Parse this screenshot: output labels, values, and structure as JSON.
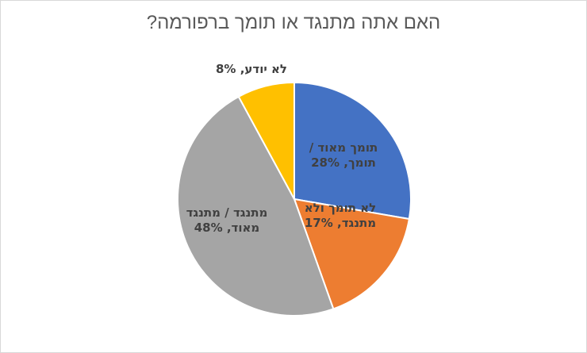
{
  "chart_data": {
    "type": "pie",
    "title": "האם אתה מתנגד או תומך ברפורמה?",
    "slices": [
      {
        "category_lines": [
          "תומך מאוד /",
          "תומך,"
        ],
        "value": 28,
        "value_text": "28%",
        "color": "#4472c4"
      },
      {
        "category_lines": [
          "לא תומך ולא",
          "מתנגד,"
        ],
        "value": 17,
        "value_text": "17%",
        "color": "#ed7d31"
      },
      {
        "category_lines": [
          "מתנגד / מתנגד",
          "מאוד,"
        ],
        "value": 48,
        "value_text": "48%",
        "color": "#a5a5a5"
      },
      {
        "category_lines": [
          "לא יודע,"
        ],
        "value": 8,
        "value_text": "8%",
        "color": "#ffc000"
      }
    ],
    "legend": "none",
    "start_angle": "12 o'clock, clockwise"
  }
}
